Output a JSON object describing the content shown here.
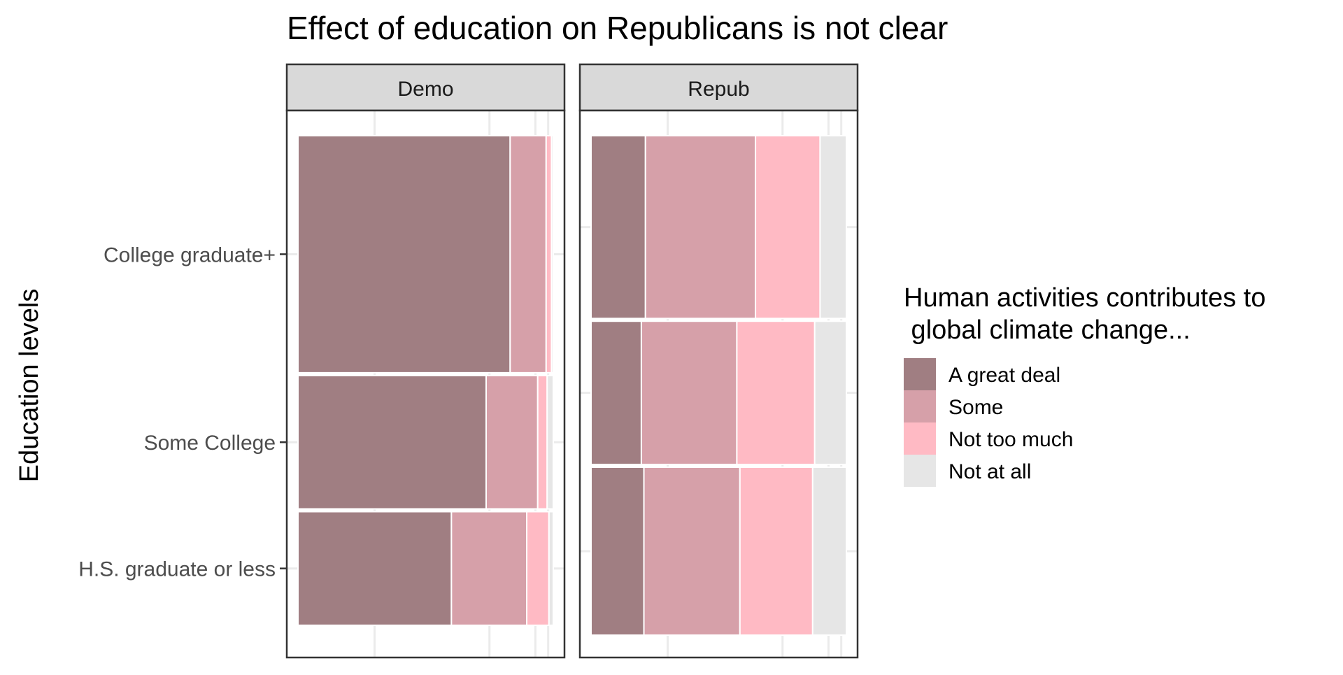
{
  "chart_data": {
    "type": "mosaic",
    "title": "Effect of education on Republicans is not clear",
    "ylabel": "Education levels",
    "xlabel": "",
    "facets": [
      "Demo",
      "Repub"
    ],
    "categories": [
      "College graduate+",
      "Some College",
      "H.S. graduate or less"
    ],
    "legend": {
      "title_lines": [
        "Human activities contributes to",
        " global climate change..."
      ],
      "position": "right",
      "items": [
        {
          "label": "A great deal",
          "color": "#a07e82"
        },
        {
          "label": "Some",
          "color": "#d6a0a9"
        },
        {
          "label": "Not too much",
          "color": "#ffbac4"
        },
        {
          "label": "Not at all",
          "color": "#e6e6e6"
        }
      ]
    },
    "panels": [
      {
        "facet": "Demo",
        "row_share": [
          0.48,
          0.27,
          0.23
        ],
        "proportions": [
          [
            0.831,
            0.141,
            0.021,
            0.007
          ],
          [
            0.737,
            0.202,
            0.037,
            0.024
          ],
          [
            0.601,
            0.295,
            0.087,
            0.017
          ]
        ]
      },
      {
        "facet": "Repub",
        "row_share": [
          0.37,
          0.29,
          0.34
        ],
        "proportions": [
          [
            0.213,
            0.431,
            0.253,
            0.103
          ],
          [
            0.197,
            0.374,
            0.305,
            0.124
          ],
          [
            0.207,
            0.376,
            0.285,
            0.132
          ]
        ]
      }
    ],
    "grid": true
  }
}
